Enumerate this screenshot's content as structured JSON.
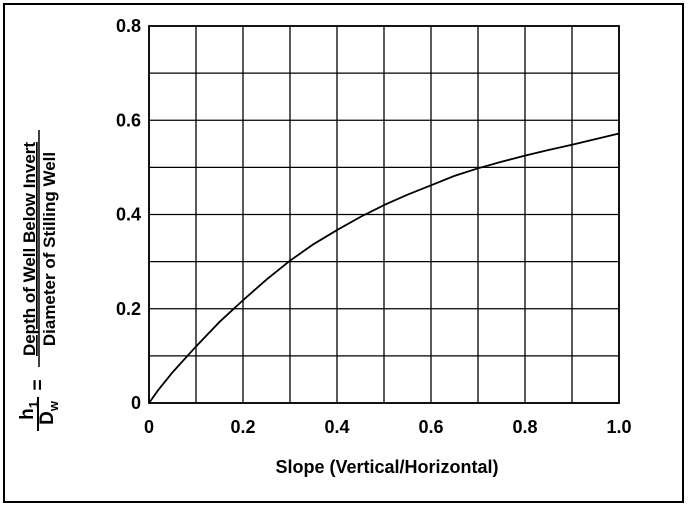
{
  "chart_data": {
    "type": "line",
    "title": "",
    "xlabel": "Slope (Vertical/Horizontal)",
    "ylabel": {
      "lhs_numerator": "h",
      "lhs_numerator_sub": "1",
      "lhs_denominator": "D",
      "lhs_denominator_sub": "w",
      "equals": "=",
      "rhs_numerator": "Depth of Well Below Invert",
      "rhs_denominator": "Diameter of Stilling Well"
    },
    "xlim": [
      0,
      1.0
    ],
    "ylim": [
      0,
      0.8
    ],
    "x_ticks": [
      0,
      0.2,
      0.4,
      0.6,
      0.8,
      1.0
    ],
    "x_tick_labels": [
      "0",
      "0.2",
      "0.4",
      "0.6",
      "0.8",
      "1.0"
    ],
    "y_ticks": [
      0,
      0.2,
      0.4,
      0.6,
      0.8
    ],
    "y_tick_labels": [
      "0",
      "0.2",
      "0.4",
      "0.6",
      "0.8"
    ],
    "grid": true,
    "legend": "none",
    "series": [
      {
        "x": [
          0,
          0.02,
          0.05,
          0.1,
          0.15,
          0.2,
          0.25,
          0.3,
          0.35,
          0.4,
          0.45,
          0.5,
          0.55,
          0.6,
          0.65,
          0.7,
          0.75,
          0.8,
          0.85,
          0.9,
          0.95,
          1.0
        ],
        "values": [
          0,
          0.028,
          0.065,
          0.12,
          0.172,
          0.218,
          0.262,
          0.302,
          0.337,
          0.367,
          0.395,
          0.42,
          0.442,
          0.462,
          0.482,
          0.498,
          0.512,
          0.525,
          0.537,
          0.548,
          0.56,
          0.572
        ]
      }
    ]
  }
}
